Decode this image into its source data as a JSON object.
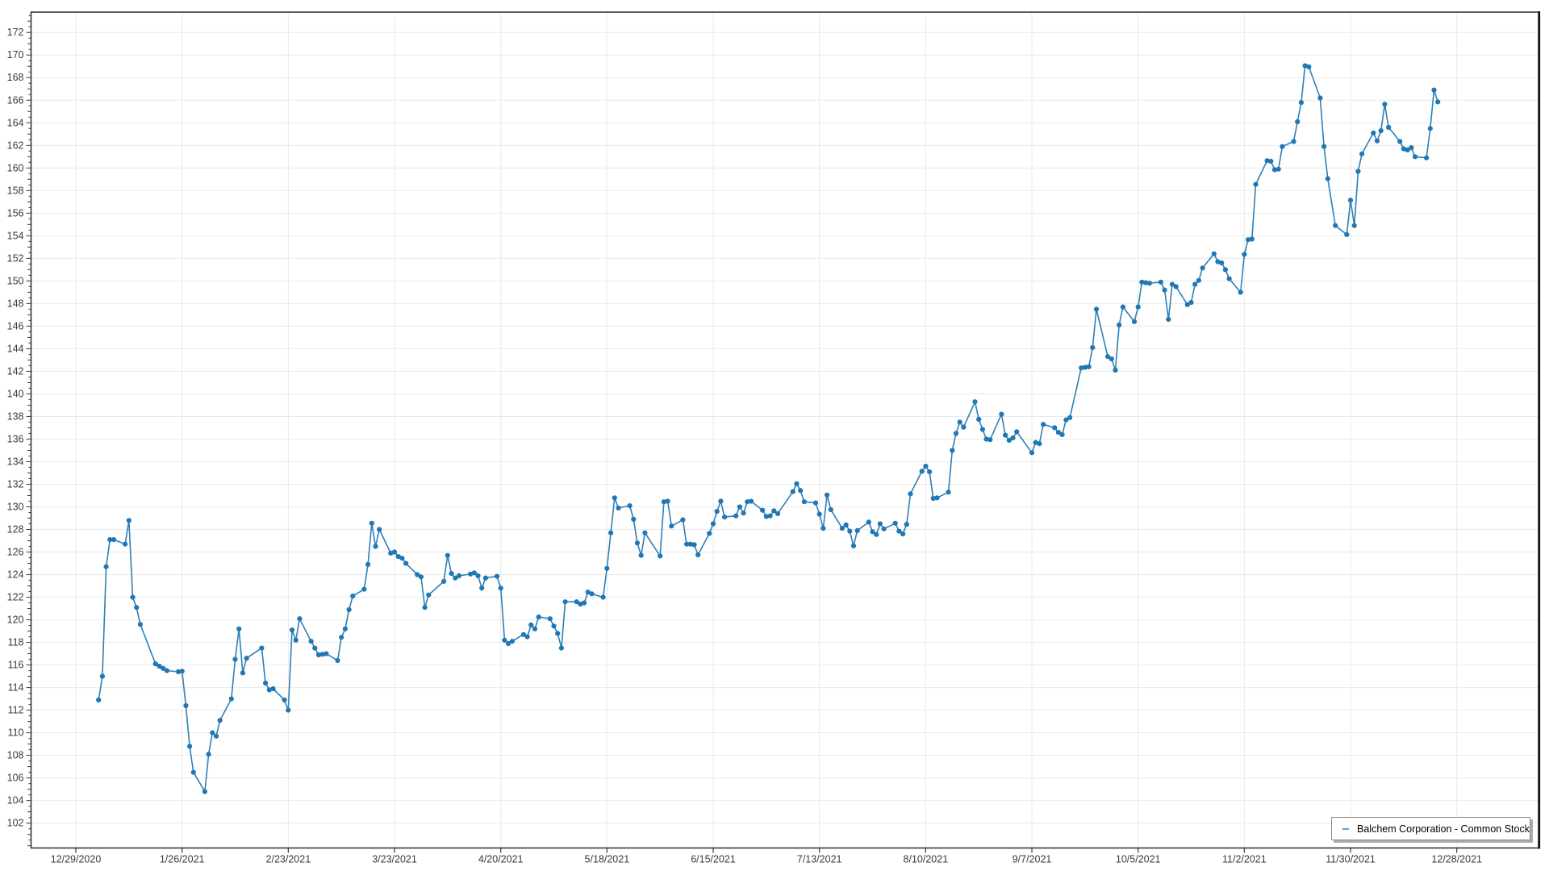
{
  "window": {
    "background": "#ffffff"
  },
  "legend": {
    "label": "Balchem Corporation - Common Stock"
  },
  "axes": {
    "grid_color": "#e9e9e9",
    "border_color": "#2b2b2b",
    "tick_color": "#3a3a3a",
    "label_color": "#3a3a3a"
  },
  "chart_data": {
    "type": "line",
    "title": "",
    "legend_position": "bottom-right",
    "grid": true,
    "ylim": [
      99.8,
      173.8
    ],
    "y_tick_min": 102,
    "y_tick_max": 172,
    "y_tick_step": 2,
    "y_minor_step": 0.5,
    "x_tick_labels": [
      "12/29/2020",
      "1/26/2021",
      "2/23/2021",
      "3/23/2021",
      "4/20/2021",
      "5/18/2021",
      "6/15/2021",
      "7/13/2021",
      "8/10/2021",
      "9/7/2021",
      "10/5/2021",
      "11/2/2021",
      "11/30/2021",
      "12/28/2021"
    ],
    "series": [
      {
        "name": "Balchem Corporation - Common Stock",
        "line_color": "#2f7fb8",
        "marker_color": "#1f77b4",
        "dates": [
          "1/4/2021",
          "1/5/2021",
          "1/6/2021",
          "1/7/2021",
          "1/8/2021",
          "1/11/2021",
          "1/12/2021",
          "1/13/2021",
          "1/14/2021",
          "1/15/2021",
          "1/19/2021",
          "1/20/2021",
          "1/21/2021",
          "1/22/2021",
          "1/25/2021",
          "1/26/2021",
          "1/27/2021",
          "1/28/2021",
          "1/29/2021",
          "2/1/2021",
          "2/2/2021",
          "2/3/2021",
          "2/4/2021",
          "2/5/2021",
          "2/8/2021",
          "2/9/2021",
          "2/10/2021",
          "2/11/2021",
          "2/12/2021",
          "2/16/2021",
          "2/17/2021",
          "2/18/2021",
          "2/19/2021",
          "2/22/2021",
          "2/23/2021",
          "2/24/2021",
          "2/25/2021",
          "2/26/2021",
          "3/1/2021",
          "3/2/2021",
          "3/3/2021",
          "3/4/2021",
          "3/5/2021",
          "3/8/2021",
          "3/9/2021",
          "3/10/2021",
          "3/11/2021",
          "3/12/2021",
          "3/15/2021",
          "3/16/2021",
          "3/17/2021",
          "3/18/2021",
          "3/19/2021",
          "3/22/2021",
          "3/23/2021",
          "3/24/2021",
          "3/25/2021",
          "3/26/2021",
          "3/29/2021",
          "3/30/2021",
          "3/31/2021",
          "4/1/2021",
          "4/5/2021",
          "4/6/2021",
          "4/7/2021",
          "4/8/2021",
          "4/9/2021",
          "4/12/2021",
          "4/13/2021",
          "4/14/2021",
          "4/15/2021",
          "4/16/2021",
          "4/19/2021",
          "4/20/2021",
          "4/21/2021",
          "4/22/2021",
          "4/23/2021",
          "4/26/2021",
          "4/27/2021",
          "4/28/2021",
          "4/29/2021",
          "4/30/2021",
          "5/3/2021",
          "5/4/2021",
          "5/5/2021",
          "5/6/2021",
          "5/7/2021",
          "5/10/2021",
          "5/11/2021",
          "5/12/2021",
          "5/13/2021",
          "5/14/2021",
          "5/17/2021",
          "5/18/2021",
          "5/19/2021",
          "5/20/2021",
          "5/21/2021",
          "5/24/2021",
          "5/25/2021",
          "5/26/2021",
          "5/27/2021",
          "5/28/2021",
          "6/1/2021",
          "6/2/2021",
          "6/3/2021",
          "6/4/2021",
          "6/7/2021",
          "6/8/2021",
          "6/9/2021",
          "6/10/2021",
          "6/11/2021",
          "6/14/2021",
          "6/15/2021",
          "6/16/2021",
          "6/17/2021",
          "6/18/2021",
          "6/21/2021",
          "6/22/2021",
          "6/23/2021",
          "6/24/2021",
          "6/25/2021",
          "6/28/2021",
          "6/29/2021",
          "6/30/2021",
          "7/1/2021",
          "7/2/2021",
          "7/6/2021",
          "7/7/2021",
          "7/8/2021",
          "7/9/2021",
          "7/12/2021",
          "7/13/2021",
          "7/14/2021",
          "7/15/2021",
          "7/16/2021",
          "7/19/2021",
          "7/20/2021",
          "7/21/2021",
          "7/22/2021",
          "7/23/2021",
          "7/26/2021",
          "7/27/2021",
          "7/28/2021",
          "7/29/2021",
          "7/30/2021",
          "8/2/2021",
          "8/3/2021",
          "8/4/2021",
          "8/5/2021",
          "8/6/2021",
          "8/9/2021",
          "8/10/2021",
          "8/11/2021",
          "8/12/2021",
          "8/13/2021",
          "8/16/2021",
          "8/17/2021",
          "8/18/2021",
          "8/19/2021",
          "8/20/2021",
          "8/23/2021",
          "8/24/2021",
          "8/25/2021",
          "8/26/2021",
          "8/27/2021",
          "8/30/2021",
          "8/31/2021",
          "9/1/2021",
          "9/2/2021",
          "9/3/2021",
          "9/7/2021",
          "9/8/2021",
          "9/9/2021",
          "9/10/2021",
          "9/13/2021",
          "9/14/2021",
          "9/15/2021",
          "9/16/2021",
          "9/17/2021",
          "9/20/2021",
          "9/21/2021",
          "9/22/2021",
          "9/23/2021",
          "9/24/2021",
          "9/27/2021",
          "9/28/2021",
          "9/29/2021",
          "9/30/2021",
          "10/1/2021",
          "10/4/2021",
          "10/5/2021",
          "10/6/2021",
          "10/7/2021",
          "10/8/2021",
          "10/11/2021",
          "10/12/2021",
          "10/13/2021",
          "10/14/2021",
          "10/15/2021",
          "10/18/2021",
          "10/19/2021",
          "10/20/2021",
          "10/21/2021",
          "10/22/2021",
          "10/25/2021",
          "10/26/2021",
          "10/27/2021",
          "10/28/2021",
          "10/29/2021",
          "11/1/2021",
          "11/2/2021",
          "11/3/2021",
          "11/4/2021",
          "11/5/2021",
          "11/8/2021",
          "11/9/2021",
          "11/10/2021",
          "11/11/2021",
          "11/12/2021",
          "11/15/2021",
          "11/16/2021",
          "11/17/2021",
          "11/18/2021",
          "11/19/2021",
          "11/22/2021",
          "11/23/2021",
          "11/24/2021",
          "11/26/2021",
          "11/29/2021",
          "11/30/2021",
          "12/1/2021",
          "12/2/2021",
          "12/3/2021",
          "12/6/2021",
          "12/7/2021",
          "12/8/2021",
          "12/9/2021",
          "12/10/2021",
          "12/13/2021",
          "12/14/2021",
          "12/15/2021",
          "12/16/2021",
          "12/17/2021",
          "12/20/2021",
          "12/21/2021",
          "12/22/2021",
          "12/23/2021"
        ],
        "values": [
          112.9,
          115.0,
          124.7,
          127.1,
          127.1,
          126.7,
          128.8,
          122.0,
          121.1,
          119.6,
          116.1,
          115.9,
          115.7,
          115.5,
          115.4,
          115.45,
          112.4,
          108.8,
          106.5,
          104.8,
          108.1,
          110.0,
          109.7,
          111.1,
          113.0,
          116.5,
          119.2,
          115.3,
          116.6,
          117.5,
          114.4,
          113.8,
          113.9,
          112.9,
          112.0,
          119.1,
          118.2,
          120.1,
          118.1,
          117.5,
          116.9,
          116.95,
          117.0,
          116.4,
          118.45,
          119.2,
          120.9,
          122.1,
          122.7,
          124.9,
          128.55,
          126.5,
          128.0,
          125.9,
          126.0,
          125.6,
          125.45,
          125.0,
          124.0,
          123.8,
          121.1,
          122.2,
          123.4,
          125.7,
          124.1,
          123.7,
          123.9,
          124.05,
          124.15,
          123.9,
          122.8,
          123.7,
          123.85,
          122.8,
          118.2,
          117.9,
          118.1,
          118.7,
          118.5,
          119.55,
          119.2,
          120.25,
          120.1,
          119.45,
          118.8,
          117.5,
          121.6,
          121.6,
          121.4,
          121.5,
          122.45,
          122.3,
          122.0,
          124.55,
          127.7,
          130.8,
          129.9,
          130.1,
          128.9,
          126.8,
          125.7,
          127.7,
          125.65,
          130.45,
          130.5,
          128.3,
          128.85,
          126.7,
          126.7,
          126.65,
          125.75,
          127.65,
          128.5,
          129.6,
          130.5,
          129.1,
          129.2,
          130.0,
          129.45,
          130.45,
          130.5,
          129.7,
          129.15,
          129.2,
          129.65,
          129.4,
          131.35,
          132.05,
          131.45,
          130.45,
          130.35,
          129.35,
          128.1,
          131.05,
          129.75,
          128.1,
          128.4,
          127.85,
          126.55,
          127.9,
          128.65,
          127.8,
          127.55,
          128.5,
          128.05,
          128.55,
          127.85,
          127.6,
          128.45,
          131.15,
          133.15,
          133.6,
          133.1,
          130.75,
          130.8,
          131.3,
          135.0,
          136.5,
          137.5,
          137.05,
          139.3,
          137.75,
          136.85,
          136.0,
          135.95,
          138.2,
          136.35,
          135.9,
          136.1,
          136.65,
          134.8,
          135.7,
          135.6,
          137.3,
          137.0,
          136.6,
          136.4,
          137.7,
          137.9,
          142.3,
          142.35,
          142.4,
          144.1,
          147.5,
          143.3,
          143.1,
          142.1,
          146.1,
          147.7,
          146.4,
          147.7,
          149.9,
          149.85,
          149.8,
          149.9,
          149.2,
          146.6,
          149.7,
          149.5,
          147.9,
          148.1,
          149.7,
          150.05,
          151.15,
          152.4,
          151.7,
          151.6,
          151.0,
          150.2,
          149.0,
          152.35,
          153.65,
          153.7,
          158.55,
          160.65,
          160.6,
          159.85,
          159.9,
          161.9,
          162.35,
          164.1,
          165.8,
          169.05,
          168.95,
          166.2,
          161.9,
          159.05,
          154.9,
          154.1,
          157.15,
          154.9,
          159.7,
          161.25,
          163.1,
          162.4,
          163.3,
          165.65,
          163.6,
          162.35,
          161.7,
          161.6,
          161.8,
          161.0,
          160.9,
          163.5,
          166.9,
          165.85
        ]
      }
    ]
  }
}
